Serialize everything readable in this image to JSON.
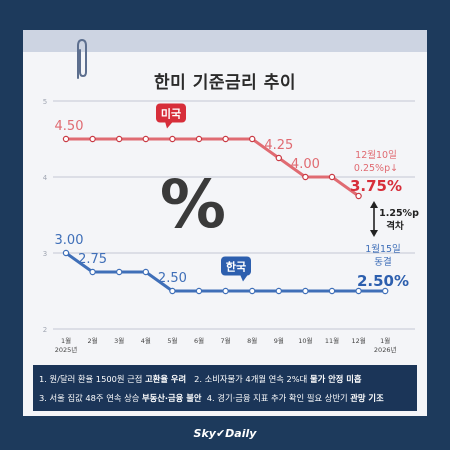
{
  "brand": "Sky✔Daily",
  "chart_data": {
    "type": "line",
    "title": "한미 기준금리 추이",
    "center_symbol": "%",
    "y_ticks": [
      "5",
      "4",
      "3",
      "2"
    ],
    "ylim": [
      2,
      5
    ],
    "x_ticks": [
      {
        "label": "1월",
        "sub": "2025년"
      },
      {
        "label": "2월"
      },
      {
        "label": "3월"
      },
      {
        "label": "4월"
      },
      {
        "label": "5월"
      },
      {
        "label": "6월"
      },
      {
        "label": "7월"
      },
      {
        "label": "8월"
      },
      {
        "label": "9월"
      },
      {
        "label": "10월"
      },
      {
        "label": "11월"
      },
      {
        "label": "12월"
      },
      {
        "label": "1월",
        "sub": "2026년"
      }
    ],
    "series": [
      {
        "name": "미국",
        "color": "#e06b72",
        "dot_color": "#c93a44",
        "points": [
          [
            0,
            4.5
          ],
          [
            1,
            4.5
          ],
          [
            2,
            4.5
          ],
          [
            3,
            4.5
          ],
          [
            4,
            4.5
          ],
          [
            5,
            4.5
          ],
          [
            6,
            4.5
          ],
          [
            7,
            4.5
          ],
          [
            8,
            4.25
          ],
          [
            9,
            4.0
          ],
          [
            10,
            4.0
          ],
          [
            11,
            3.75
          ]
        ],
        "labels": [
          {
            "i": 0,
            "text": "4.50"
          },
          {
            "i": 8,
            "text": "4.25"
          },
          {
            "i": 9,
            "text": "4.00"
          }
        ],
        "final_note_1": "12월10일",
        "final_note_2": "0.25%p↓",
        "final_value": "3.75%"
      },
      {
        "name": "한국",
        "color": "#3f6fb8",
        "dot_color": "#3f6fb8",
        "points": [
          [
            0,
            3.0
          ],
          [
            1,
            2.75
          ],
          [
            2,
            2.75
          ],
          [
            3,
            2.75
          ],
          [
            4,
            2.5
          ],
          [
            5,
            2.5
          ],
          [
            6,
            2.5
          ],
          [
            7,
            2.5
          ],
          [
            8,
            2.5
          ],
          [
            9,
            2.5
          ],
          [
            10,
            2.5
          ],
          [
            11,
            2.5
          ],
          [
            12,
            2.5
          ]
        ],
        "labels": [
          {
            "i": 0,
            "text": "3.00"
          },
          {
            "i": 1,
            "text": "2.75"
          },
          {
            "i": 4,
            "text": "2.50"
          }
        ],
        "final_note_1": "1월15일",
        "final_note_2": "동결",
        "final_value": "2.50%"
      }
    ],
    "gap_label_1": "1.25%p",
    "gap_label_2": "격차"
  },
  "notes": {
    "row1": [
      {
        "t": "1. 원/달러 환율 1500원 근접 ",
        "b": false
      },
      {
        "t": "고환율 우려",
        "b": true
      },
      {
        "t": "   2. 소비자물가 4개월 연속 2%대 ",
        "b": false
      },
      {
        "t": "물가 안정 미흡",
        "b": true
      }
    ],
    "row2": [
      {
        "t": "3. 서울 집값 48주 연속 상승 ",
        "b": false
      },
      {
        "t": "부동산·금융 불안",
        "b": true
      },
      {
        "t": "  4. 경기·금융 지표 추가 확인 필요 상반기 ",
        "b": false
      },
      {
        "t": "관망 기조",
        "b": true
      }
    ]
  }
}
